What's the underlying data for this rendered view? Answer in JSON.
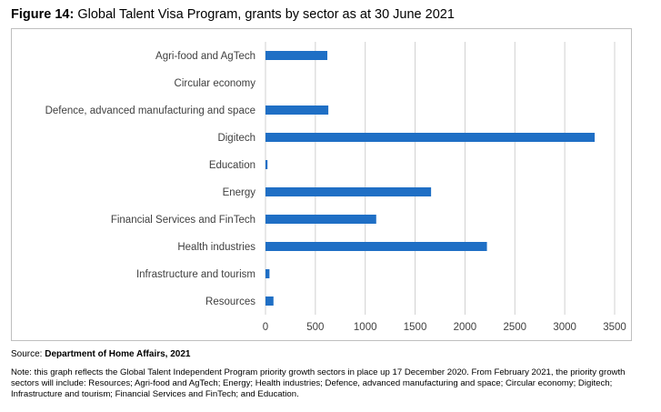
{
  "figure": {
    "label": "Figure 14:",
    "title": "Global Talent Visa Program, grants by sector as at 30 June 2021"
  },
  "source": {
    "prefix": "Source:",
    "text": "Department of Home Affairs, 2021"
  },
  "note": "Note: this graph reflects the Global Talent Independent Program priority growth sectors in place up 17 December 2020. From February 2021, the priority growth sectors will include: Resources; Agri-food and AgTech; Energy; Health industries; Defence, advanced manufacturing and space; Circular economy; Digitech; Infrastructure and tourism; Financial Services and FinTech; and Education.",
  "chart_data": {
    "type": "bar",
    "orientation": "horizontal",
    "categories": [
      "Agri-food and AgTech",
      "Circular economy",
      "Defence, advanced manufacturing and space",
      "Digitech",
      "Education",
      "Energy",
      "Financial Services and FinTech",
      "Health industries",
      "Infrastructure and tourism",
      "Resources"
    ],
    "values": [
      620,
      0,
      630,
      3300,
      20,
      1660,
      1110,
      2220,
      40,
      80
    ],
    "xlim": [
      0,
      3500
    ],
    "xticks": [
      0,
      500,
      1000,
      1500,
      2000,
      2500,
      3000,
      3500
    ],
    "grid": "vertical",
    "bar_color": "#1f6fc5",
    "grid_color": "#d0d0d0"
  }
}
